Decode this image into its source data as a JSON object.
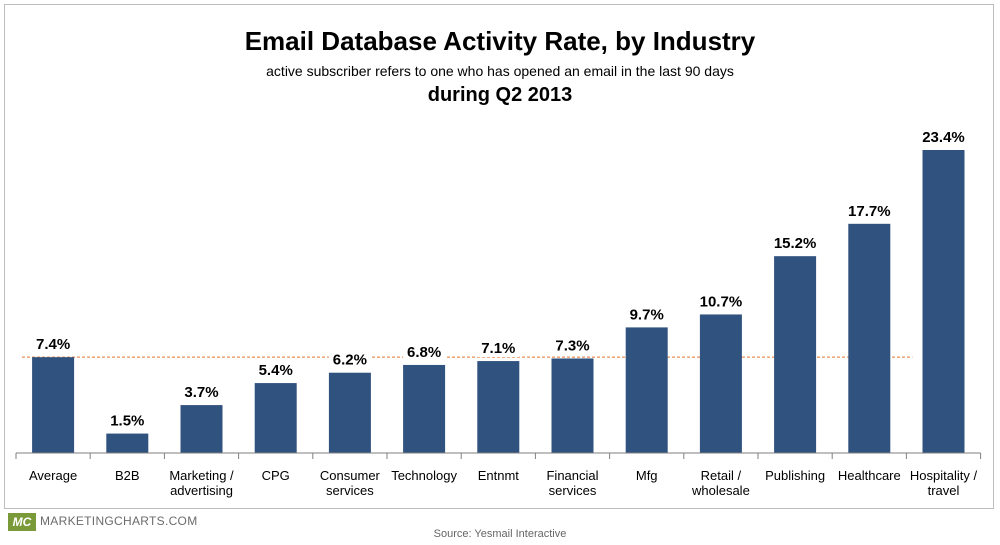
{
  "chart_data": {
    "type": "bar",
    "title": "Email Database Activity Rate, by Industry",
    "subtitle": "active subscriber refers to one who has opened an email in the last 90 days",
    "period": "during Q2 2013",
    "categories": [
      [
        "Average"
      ],
      [
        "B2B"
      ],
      [
        "Marketing /",
        "advertising"
      ],
      [
        "CPG"
      ],
      [
        "Consumer",
        "services"
      ],
      [
        "Technology"
      ],
      [
        "Entnmt"
      ],
      [
        "Financial",
        "services"
      ],
      [
        "Mfg"
      ],
      [
        "Retail /",
        "wholesale"
      ],
      [
        "Publishing"
      ],
      [
        "Healthcare"
      ],
      [
        "Hospitality /",
        "travel"
      ]
    ],
    "values": [
      7.4,
      1.5,
      3.7,
      5.4,
      6.2,
      6.8,
      7.1,
      7.3,
      9.7,
      10.7,
      15.2,
      17.7,
      23.4
    ],
    "value_labels": [
      "7.4%",
      "1.5%",
      "3.7%",
      "5.4%",
      "6.2%",
      "6.8%",
      "7.1%",
      "7.3%",
      "9.7%",
      "10.7%",
      "15.2%",
      "17.7%",
      "23.4%"
    ],
    "reference_line": 7.4,
    "ylim": [
      0,
      23.4
    ],
    "bar_color": "#30527e",
    "reference_color": "#e8732c",
    "grid": false,
    "legend": "none"
  },
  "footer": {
    "logo_mark": "MC",
    "logo_text": "MARKETINGCHARTS.COM",
    "source": "Source: Yesmail Interactive"
  }
}
